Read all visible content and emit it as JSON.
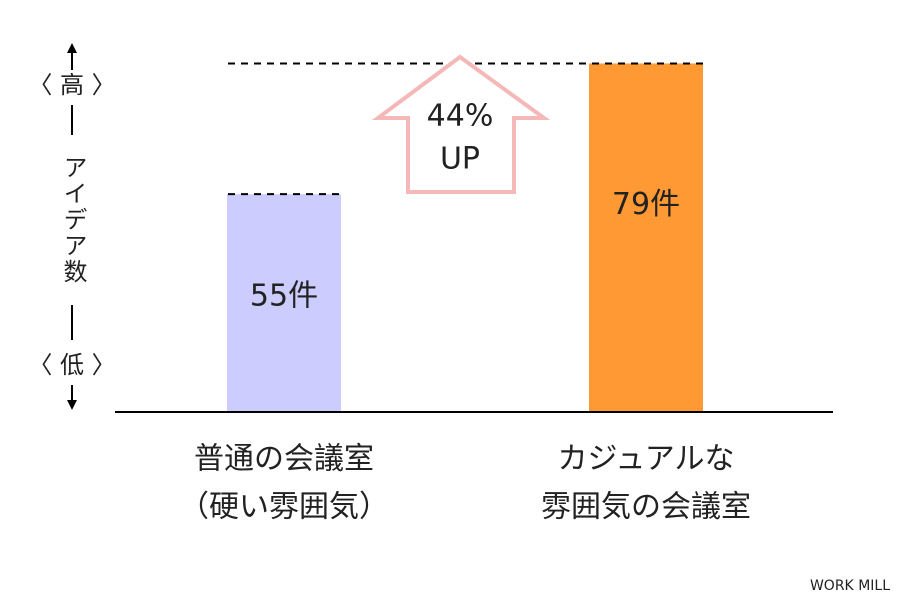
{
  "chart_data": {
    "type": "bar",
    "categories": [
      [
        "普通の会議室",
        "（硬い雰囲気）"
      ],
      [
        "カジュアルな",
        "雰囲気の会議室"
      ]
    ],
    "values": [
      55,
      79
    ],
    "value_labels": [
      "55件",
      "79件"
    ],
    "colors": [
      "#ccccff",
      "#ff9933"
    ],
    "ylim": [
      15,
      80
    ],
    "y_axis": {
      "high": "〈 高 〉",
      "label": "アイデア数",
      "low": "〈 低 〉"
    },
    "annotation": [
      "44%",
      "UP"
    ],
    "source": "WORK MILL"
  }
}
